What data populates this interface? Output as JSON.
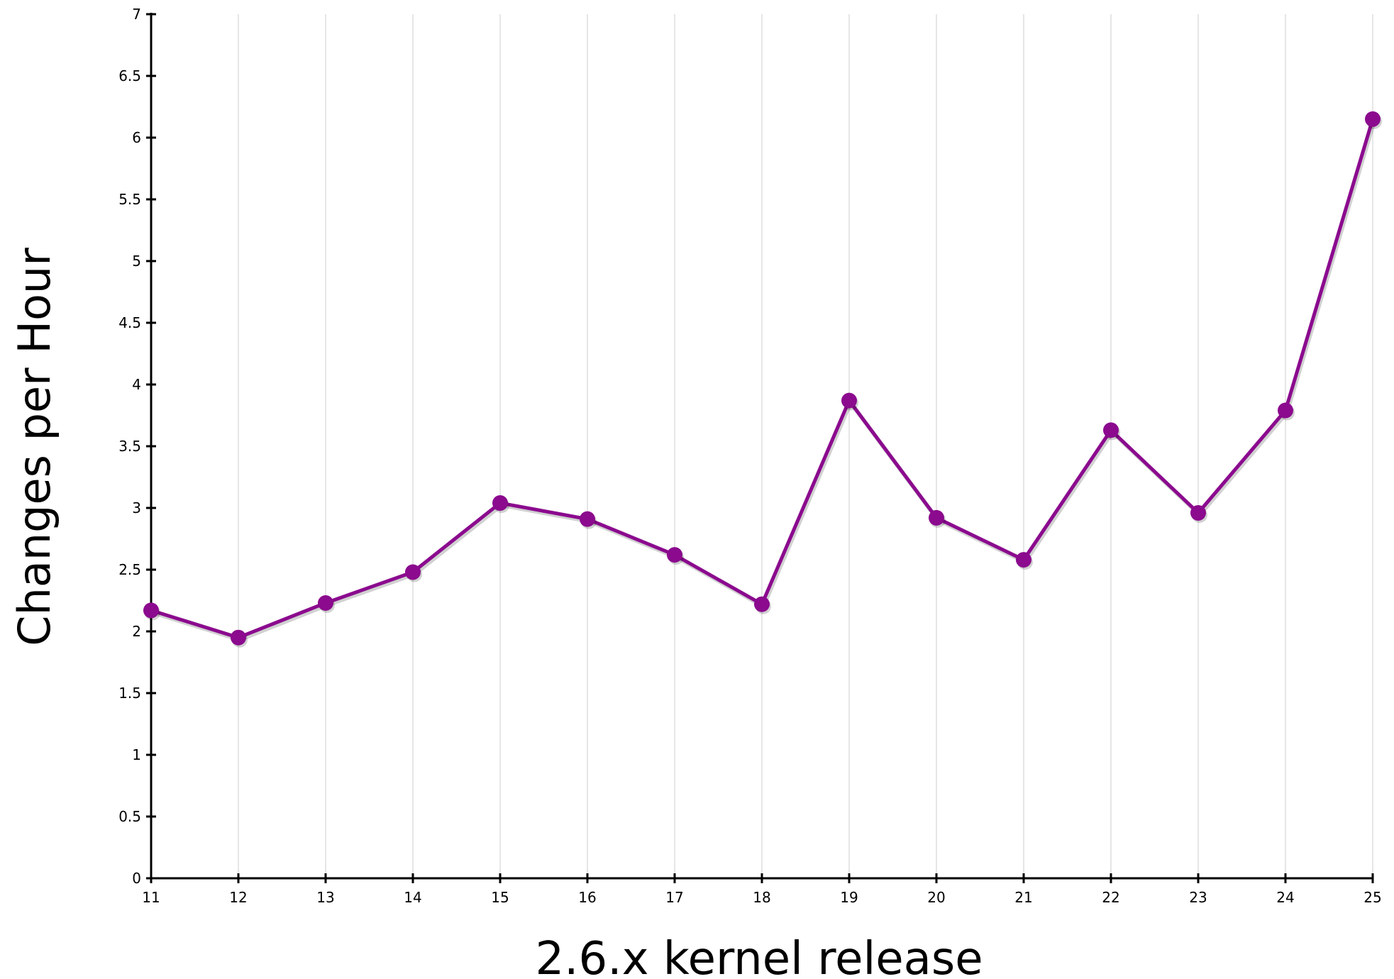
{
  "chart_data": {
    "type": "line",
    "title": "",
    "xlabel": "2.6.x kernel release",
    "ylabel": "Changes per Hour",
    "x": [
      11,
      12,
      13,
      14,
      15,
      16,
      17,
      18,
      19,
      20,
      21,
      22,
      23,
      24,
      25
    ],
    "x_tick_labels": [
      "11",
      "12",
      "13",
      "14",
      "15",
      "16",
      "17",
      "18",
      "19",
      "20",
      "21",
      "22",
      "23",
      "24",
      "25"
    ],
    "y_tick_labels": [
      "0",
      "0.5",
      "1",
      "1.5",
      "2",
      "2.5",
      "3",
      "3.5",
      "4",
      "4.5",
      "5",
      "5.5",
      "6",
      "6.5",
      "7"
    ],
    "series": [
      {
        "values": [
          2.17,
          1.95,
          2.23,
          2.48,
          3.04,
          2.91,
          2.62,
          2.22,
          3.87,
          2.92,
          2.58,
          3.63,
          2.96,
          3.79,
          6.15
        ]
      }
    ],
    "xlim": [
      11,
      25
    ],
    "ylim": [
      0,
      7
    ],
    "grid": "vertical",
    "legend": "none",
    "colors": {
      "line": "#8B0A8E",
      "grid": "#E6E6E6",
      "axis": "#000000"
    }
  }
}
